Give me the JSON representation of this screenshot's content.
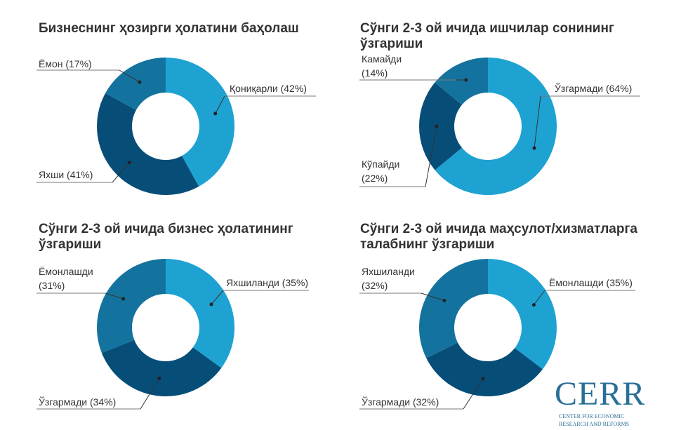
{
  "colors": {
    "light": "#1ea2d2",
    "mid": "#14739e",
    "dark": "#064e78"
  },
  "chart_data": [
    {
      "type": "pie",
      "title": "Бизнеснинг ҳозирги ҳолатини баҳолаш",
      "slices": [
        {
          "label": "Қониқарли",
          "value": 42,
          "text": "Қониқарли (42%)"
        },
        {
          "label": "Яхши",
          "value": 41,
          "text": "Яхши (41%)"
        },
        {
          "label": "Ёмон",
          "value": 17,
          "text": "Ёмон (17%)"
        }
      ]
    },
    {
      "type": "pie",
      "title": "Сўнги 2-3 ой ичида ишчилар сонининг ўзгариши",
      "slices": [
        {
          "label": "Ўзгармади",
          "value": 64,
          "text": "Ўзгармади (64%)"
        },
        {
          "label": "Кўпайди",
          "value": 22,
          "text": "Кўпайди (22%)"
        },
        {
          "label": "Камайди",
          "value": 14,
          "text": "Камайди (14%)"
        }
      ]
    },
    {
      "type": "pie",
      "title": "Сўнги 2-3 ой ичида бизнес ҳолатининг ўзгариши",
      "slices": [
        {
          "label": "Яхшиланди",
          "value": 35,
          "text": "Яхшиланди (35%)"
        },
        {
          "label": "Ўзгармади",
          "value": 34,
          "text": "Ўзгармади (34%)"
        },
        {
          "label": "Ёмонлашди",
          "value": 31,
          "text": "Ёмонлашди (31%)"
        }
      ]
    },
    {
      "type": "pie",
      "title": "Сўнги 2-3 ой ичида маҳсулот/хизматларга талабнинг ўзгариши",
      "slices": [
        {
          "label": "Ёмонлашди",
          "value": 35,
          "text": "Ёмонлашди (35%)"
        },
        {
          "label": "Ўзгармади",
          "value": 32,
          "text": "Ўзгармади (32%)"
        },
        {
          "label": "Яхшиланди",
          "value": 32,
          "text": "Яхшиланди (32%)"
        }
      ]
    }
  ],
  "logo": {
    "name": "CERR",
    "line1": "CENTER FOR ECONOMIC",
    "line2": "RESEARCH AND REFORMS"
  }
}
